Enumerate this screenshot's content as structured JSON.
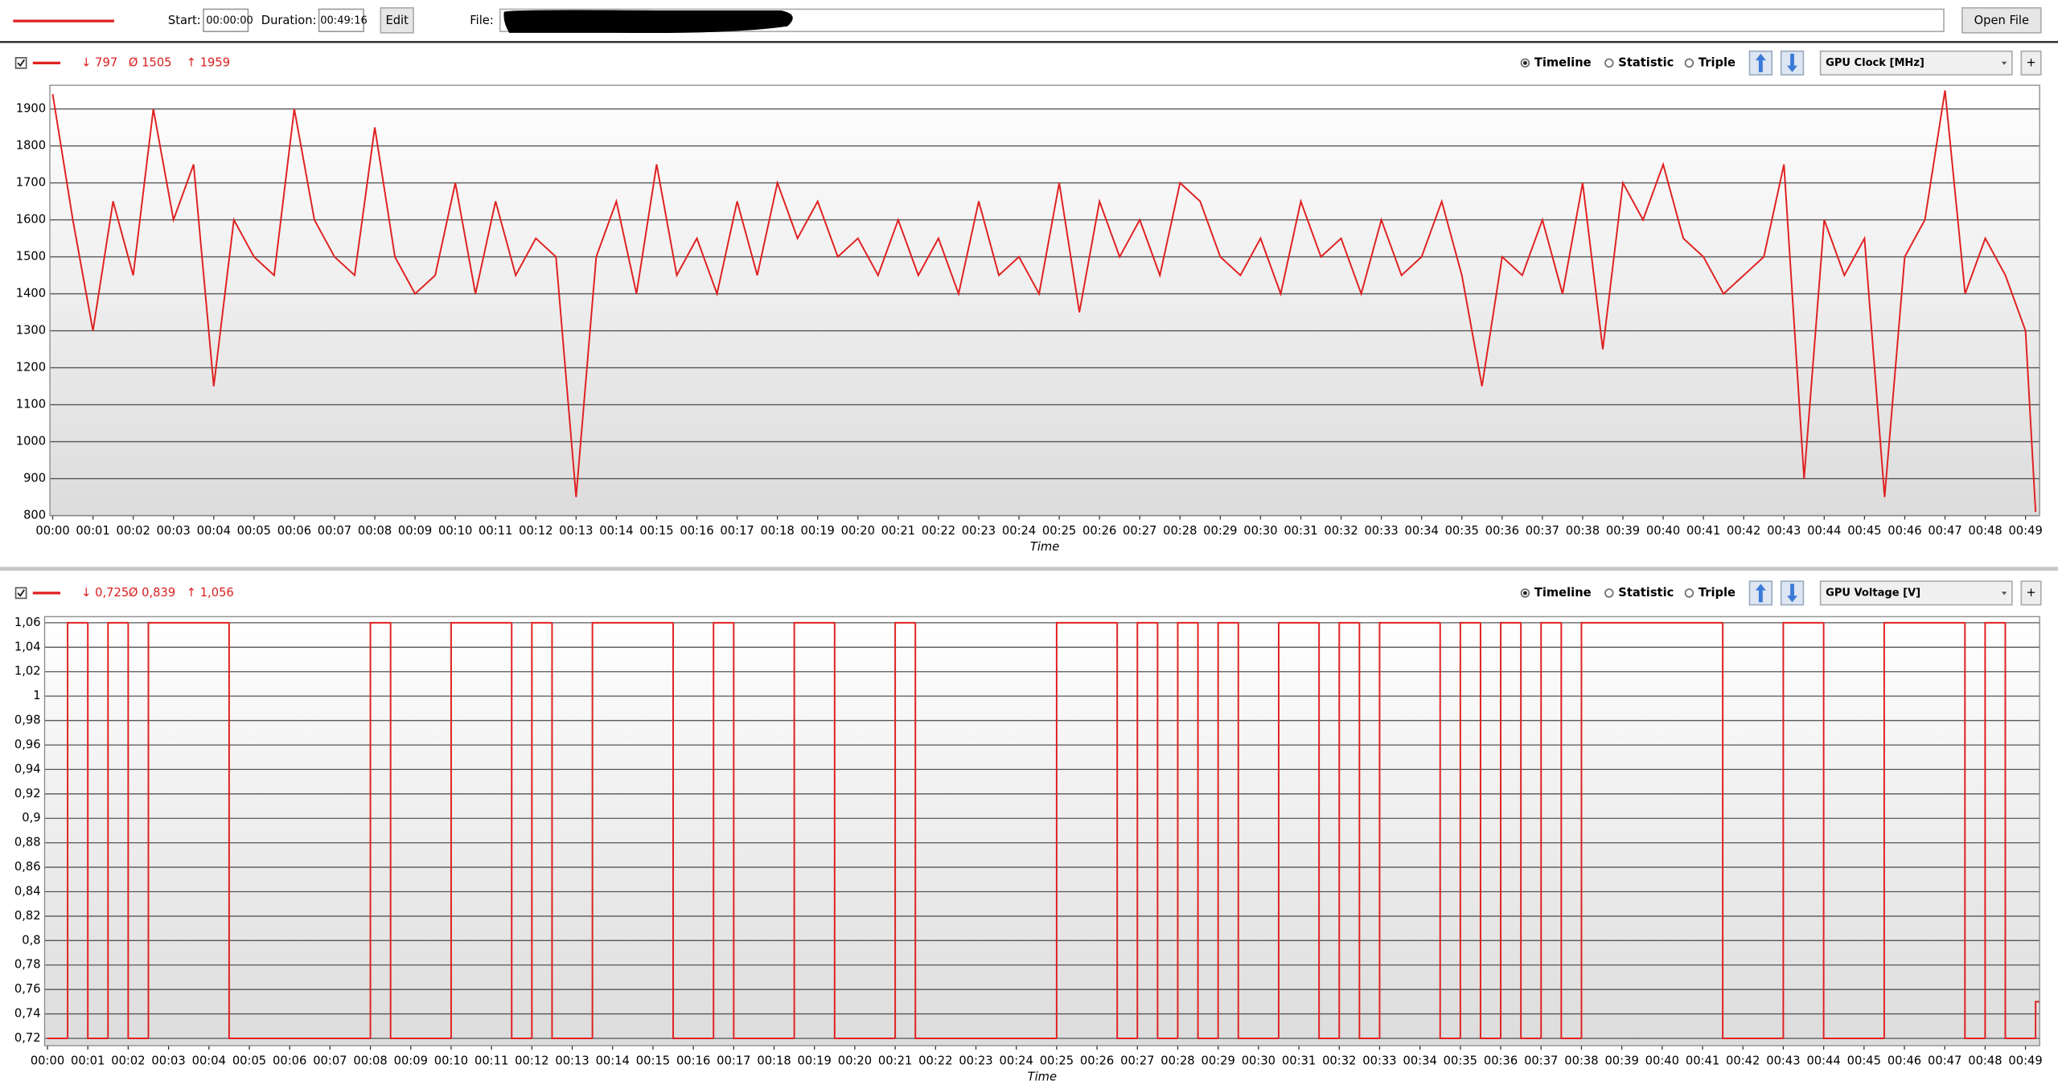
{
  "toolbar": {
    "start_label": "Start:",
    "start": "00:00:00",
    "duration_label": "Duration:",
    "duration": "00:49:16",
    "edit": "Edit",
    "file_label": "File:",
    "open_file": "Open File"
  },
  "panels": [
    {
      "stats": [
        "↓ 797",
        "Ø 1505",
        "↑ 1959"
      ],
      "modes": [
        "Timeline",
        "Statistic",
        "Triple"
      ],
      "sensor": "GPU Clock [MHz]",
      "add": "+"
    },
    {
      "stats": [
        "↓ 0,725",
        "Ø 0,839",
        "↑ 1,056"
      ],
      "modes": [
        "Timeline",
        "Statistic",
        "Triple"
      ],
      "sensor": "GPU Voltage [V]",
      "add": "+"
    }
  ],
  "chart_data": [
    {
      "type": "line",
      "xlabel": "Time",
      "color": "#e02020",
      "grid": true,
      "xlim": [
        -0.07,
        49.35
      ],
      "ylim": [
        800,
        1964
      ],
      "yticks": [
        800,
        900,
        1000,
        1100,
        1200,
        1300,
        1400,
        1500,
        1600,
        1700,
        1800,
        1900
      ],
      "xticks": [
        {
          "value": 0,
          "label": "00:00"
        },
        {
          "value": 1,
          "label": "00:01"
        },
        {
          "value": 2,
          "label": "00:02"
        },
        {
          "value": 3,
          "label": "00:03"
        },
        {
          "value": 4,
          "label": "00:04"
        },
        {
          "value": 5,
          "label": "00:05"
        },
        {
          "value": 6,
          "label": "00:06"
        },
        {
          "value": 7,
          "label": "00:07"
        },
        {
          "value": 8,
          "label": "00:08"
        },
        {
          "value": 9,
          "label": "00:09"
        },
        {
          "value": 10,
          "label": "00:10"
        },
        {
          "value": 11,
          "label": "00:11"
        },
        {
          "value": 12,
          "label": "00:12"
        },
        {
          "value": 13,
          "label": "00:13"
        },
        {
          "value": 14,
          "label": "00:14"
        },
        {
          "value": 15,
          "label": "00:15"
        },
        {
          "value": 16,
          "label": "00:16"
        },
        {
          "value": 17,
          "label": "00:17"
        },
        {
          "value": 18,
          "label": "00:18"
        },
        {
          "value": 19,
          "label": "00:19"
        },
        {
          "value": 20,
          "label": "00:20"
        },
        {
          "value": 21,
          "label": "00:21"
        },
        {
          "value": 22,
          "label": "00:22"
        },
        {
          "value": 23,
          "label": "00:23"
        },
        {
          "value": 24,
          "label": "00:24"
        },
        {
          "value": 25,
          "label": "00:25"
        },
        {
          "value": 26,
          "label": "00:26"
        },
        {
          "value": 27,
          "label": "00:27"
        },
        {
          "value": 28,
          "label": "00:28"
        },
        {
          "value": 29,
          "label": "00:29"
        },
        {
          "value": 30,
          "label": "00:30"
        },
        {
          "value": 31,
          "label": "00:31"
        },
        {
          "value": 32,
          "label": "00:32"
        },
        {
          "value": 33,
          "label": "00:33"
        },
        {
          "value": 34,
          "label": "00:34"
        },
        {
          "value": 35,
          "label": "00:35"
        },
        {
          "value": 36,
          "label": "00:36"
        },
        {
          "value": 37,
          "label": "00:37"
        },
        {
          "value": 38,
          "label": "00:38"
        },
        {
          "value": 39,
          "label": "00:39"
        },
        {
          "value": 40,
          "label": "00:40"
        },
        {
          "value": 41,
          "label": "00:41"
        },
        {
          "value": 42,
          "label": "00:42"
        },
        {
          "value": 43,
          "label": "00:43"
        },
        {
          "value": 44,
          "label": "00:44"
        },
        {
          "value": 45,
          "label": "00:45"
        },
        {
          "value": 46,
          "label": "00:46"
        },
        {
          "value": 47,
          "label": "00:47"
        },
        {
          "value": 48,
          "label": "00:48"
        },
        {
          "value": 49,
          "label": "00:49"
        }
      ],
      "x": [
        0,
        0.5,
        1,
        1.5,
        2,
        2.5,
        3,
        3.5,
        4,
        4.5,
        5,
        5.5,
        6,
        6.5,
        7,
        7.5,
        8,
        8.5,
        9,
        9.5,
        10,
        10.5,
        11,
        11.5,
        12,
        12.5,
        13,
        13.5,
        14,
        14.5,
        15,
        15.5,
        16,
        16.5,
        17,
        17.5,
        18,
        18.5,
        19,
        19.5,
        20,
        20.5,
        21,
        21.5,
        22,
        22.5,
        23,
        23.5,
        24,
        24.5,
        25,
        25.5,
        26,
        26.5,
        27,
        27.5,
        28,
        28.5,
        29,
        29.5,
        30,
        30.5,
        31,
        31.5,
        32,
        32.5,
        33,
        33.5,
        34,
        34.5,
        35,
        35.5,
        36,
        36.5,
        37,
        37.5,
        38,
        38.5,
        39,
        39.5,
        40,
        40.5,
        41,
        41.5,
        42,
        42.5,
        43,
        43.5,
        44,
        44.5,
        45,
        45.5,
        46,
        46.5,
        47,
        47.5,
        48,
        48.5,
        49,
        49.25
      ],
      "values": [
        1940,
        1600,
        1300,
        1650,
        1450,
        1900,
        1600,
        1750,
        1150,
        1600,
        1500,
        1450,
        1900,
        1600,
        1500,
        1450,
        1850,
        1500,
        1400,
        1450,
        1700,
        1400,
        1650,
        1450,
        1550,
        1500,
        850,
        1500,
        1650,
        1400,
        1750,
        1450,
        1550,
        1400,
        1650,
        1450,
        1700,
        1550,
        1650,
        1500,
        1550,
        1450,
        1600,
        1450,
        1550,
        1400,
        1650,
        1450,
        1500,
        1400,
        1700,
        1350,
        1650,
        1500,
        1600,
        1450,
        1700,
        1650,
        1500,
        1450,
        1550,
        1400,
        1650,
        1500,
        1550,
        1400,
        1600,
        1450,
        1500,
        1650,
        1450,
        1150,
        1500,
        1450,
        1600,
        1400,
        1700,
        1250,
        1700,
        1600,
        1750,
        1550,
        1500,
        1400,
        1450,
        1500,
        1750,
        900,
        1600,
        1450,
        1550,
        850,
        1500,
        1600,
        1950,
        1400,
        1550,
        1450,
        1300,
        810
      ]
    },
    {
      "type": "line",
      "step": true,
      "xlabel": "Time",
      "color": "#e02020",
      "grid": true,
      "xlim": [
        -0.07,
        49.35
      ],
      "ylim": [
        0.714,
        1.065
      ],
      "yticks": [
        {
          "value": 0.72,
          "label": "0,72"
        },
        {
          "value": 0.74,
          "label": "0,74"
        },
        {
          "value": 0.76,
          "label": "0,76"
        },
        {
          "value": 0.78,
          "label": "0,78"
        },
        {
          "value": 0.8,
          "label": "0,8"
        },
        {
          "value": 0.82,
          "label": "0,82"
        },
        {
          "value": 0.84,
          "label": "0,84"
        },
        {
          "value": 0.86,
          "label": "0,86"
        },
        {
          "value": 0.88,
          "label": "0,88"
        },
        {
          "value": 0.9,
          "label": "0,9"
        },
        {
          "value": 0.92,
          "label": "0,92"
        },
        {
          "value": 0.94,
          "label": "0,94"
        },
        {
          "value": 0.96,
          "label": "0,96"
        },
        {
          "value": 0.98,
          "label": "0,98"
        },
        1,
        {
          "value": 1.02,
          "label": "1,02"
        },
        {
          "value": 1.04,
          "label": "1,04"
        },
        {
          "value": 1.06,
          "label": "1,06"
        }
      ],
      "xticks": [
        {
          "value": 0,
          "label": "00:00"
        },
        {
          "value": 1,
          "label": "00:01"
        },
        {
          "value": 2,
          "label": "00:02"
        },
        {
          "value": 3,
          "label": "00:03"
        },
        {
          "value": 4,
          "label": "00:04"
        },
        {
          "value": 5,
          "label": "00:05"
        },
        {
          "value": 6,
          "label": "00:06"
        },
        {
          "value": 7,
          "label": "00:07"
        },
        {
          "value": 8,
          "label": "00:08"
        },
        {
          "value": 9,
          "label": "00:09"
        },
        {
          "value": 10,
          "label": "00:10"
        },
        {
          "value": 11,
          "label": "00:11"
        },
        {
          "value": 12,
          "label": "00:12"
        },
        {
          "value": 13,
          "label": "00:13"
        },
        {
          "value": 14,
          "label": "00:14"
        },
        {
          "value": 15,
          "label": "00:15"
        },
        {
          "value": 16,
          "label": "00:16"
        },
        {
          "value": 17,
          "label": "00:17"
        },
        {
          "value": 18,
          "label": "00:18"
        },
        {
          "value": 19,
          "label": "00:19"
        },
        {
          "value": 20,
          "label": "00:20"
        },
        {
          "value": 21,
          "label": "00:21"
        },
        {
          "value": 22,
          "label": "00:22"
        },
        {
          "value": 23,
          "label": "00:23"
        },
        {
          "value": 24,
          "label": "00:24"
        },
        {
          "value": 25,
          "label": "00:25"
        },
        {
          "value": 26,
          "label": "00:26"
        },
        {
          "value": 27,
          "label": "00:27"
        },
        {
          "value": 28,
          "label": "00:28"
        },
        {
          "value": 29,
          "label": "00:29"
        },
        {
          "value": 30,
          "label": "00:30"
        },
        {
          "value": 31,
          "label": "00:31"
        },
        {
          "value": 32,
          "label": "00:32"
        },
        {
          "value": 33,
          "label": "00:33"
        },
        {
          "value": 34,
          "label": "00:34"
        },
        {
          "value": 35,
          "label": "00:35"
        },
        {
          "value": 36,
          "label": "00:36"
        },
        {
          "value": 37,
          "label": "00:37"
        },
        {
          "value": 38,
          "label": "00:38"
        },
        {
          "value": 39,
          "label": "00:39"
        },
        {
          "value": 40,
          "label": "00:40"
        },
        {
          "value": 41,
          "label": "00:41"
        },
        {
          "value": 42,
          "label": "00:42"
        },
        {
          "value": 43,
          "label": "00:43"
        },
        {
          "value": 44,
          "label": "00:44"
        },
        {
          "value": 45,
          "label": "00:45"
        },
        {
          "value": 46,
          "label": "00:46"
        },
        {
          "value": 47,
          "label": "00:47"
        },
        {
          "value": 48,
          "label": "00:48"
        },
        {
          "value": 49,
          "label": "00:49"
        }
      ],
      "x": [
        0,
        0.5,
        1,
        1.5,
        2,
        2.5,
        3,
        3.5,
        4,
        4.5,
        5,
        5.5,
        6,
        6.5,
        7,
        7.5,
        8,
        8.5,
        9,
        9.5,
        10,
        10.5,
        11,
        11.5,
        12,
        12.5,
        13,
        13.5,
        14,
        14.5,
        15,
        15.5,
        16,
        16.5,
        17,
        17.5,
        18,
        18.5,
        19,
        19.5,
        20,
        20.5,
        21,
        21.5,
        22,
        22.5,
        23,
        23.5,
        24,
        24.5,
        25,
        25.5,
        26,
        26.5,
        27,
        27.5,
        28,
        28.5,
        29,
        29.5,
        30,
        30.5,
        31,
        31.5,
        32,
        32.5,
        33,
        33.5,
        34,
        34.5,
        35,
        35.5,
        36,
        36.5,
        37,
        37.5,
        38,
        38.5,
        39,
        39.5,
        40,
        40.5,
        41,
        41.5,
        42,
        42.5,
        43,
        43.5,
        44,
        44.5,
        45,
        45.5,
        46,
        46.5,
        47,
        47.5,
        48,
        48.5,
        49,
        49.25
      ],
      "values": [
        0.72,
        1.06,
        0.72,
        1.06,
        0.72,
        1.06,
        1.06,
        1.06,
        1.06,
        0.72,
        0.72,
        0.72,
        0.72,
        0.72,
        0.72,
        0.72,
        1.06,
        0.72,
        0.72,
        0.72,
        1.06,
        1.06,
        1.06,
        0.72,
        1.06,
        0.72,
        0.72,
        1.06,
        1.06,
        1.06,
        1.06,
        0.72,
        0.72,
        1.06,
        0.72,
        0.72,
        0.72,
        1.06,
        1.06,
        0.72,
        0.72,
        0.72,
        1.06,
        0.72,
        0.72,
        0.72,
        0.72,
        0.72,
        0.72,
        0.72,
        1.06,
        1.06,
        1.06,
        0.72,
        1.06,
        0.72,
        1.06,
        0.72,
        1.06,
        0.72,
        0.72,
        1.06,
        1.06,
        0.72,
        1.06,
        0.72,
        1.06,
        1.06,
        1.06,
        0.72,
        1.06,
        0.72,
        1.06,
        0.72,
        1.06,
        0.72,
        1.06,
        1.06,
        1.06,
        1.06,
        1.06,
        1.06,
        1.06,
        0.72,
        0.72,
        0.72,
        1.06,
        1.06,
        0.72,
        0.72,
        0.72,
        1.06,
        1.06,
        1.06,
        1.06,
        0.72,
        1.06,
        0.72,
        0.72,
        0.75
      ]
    }
  ]
}
